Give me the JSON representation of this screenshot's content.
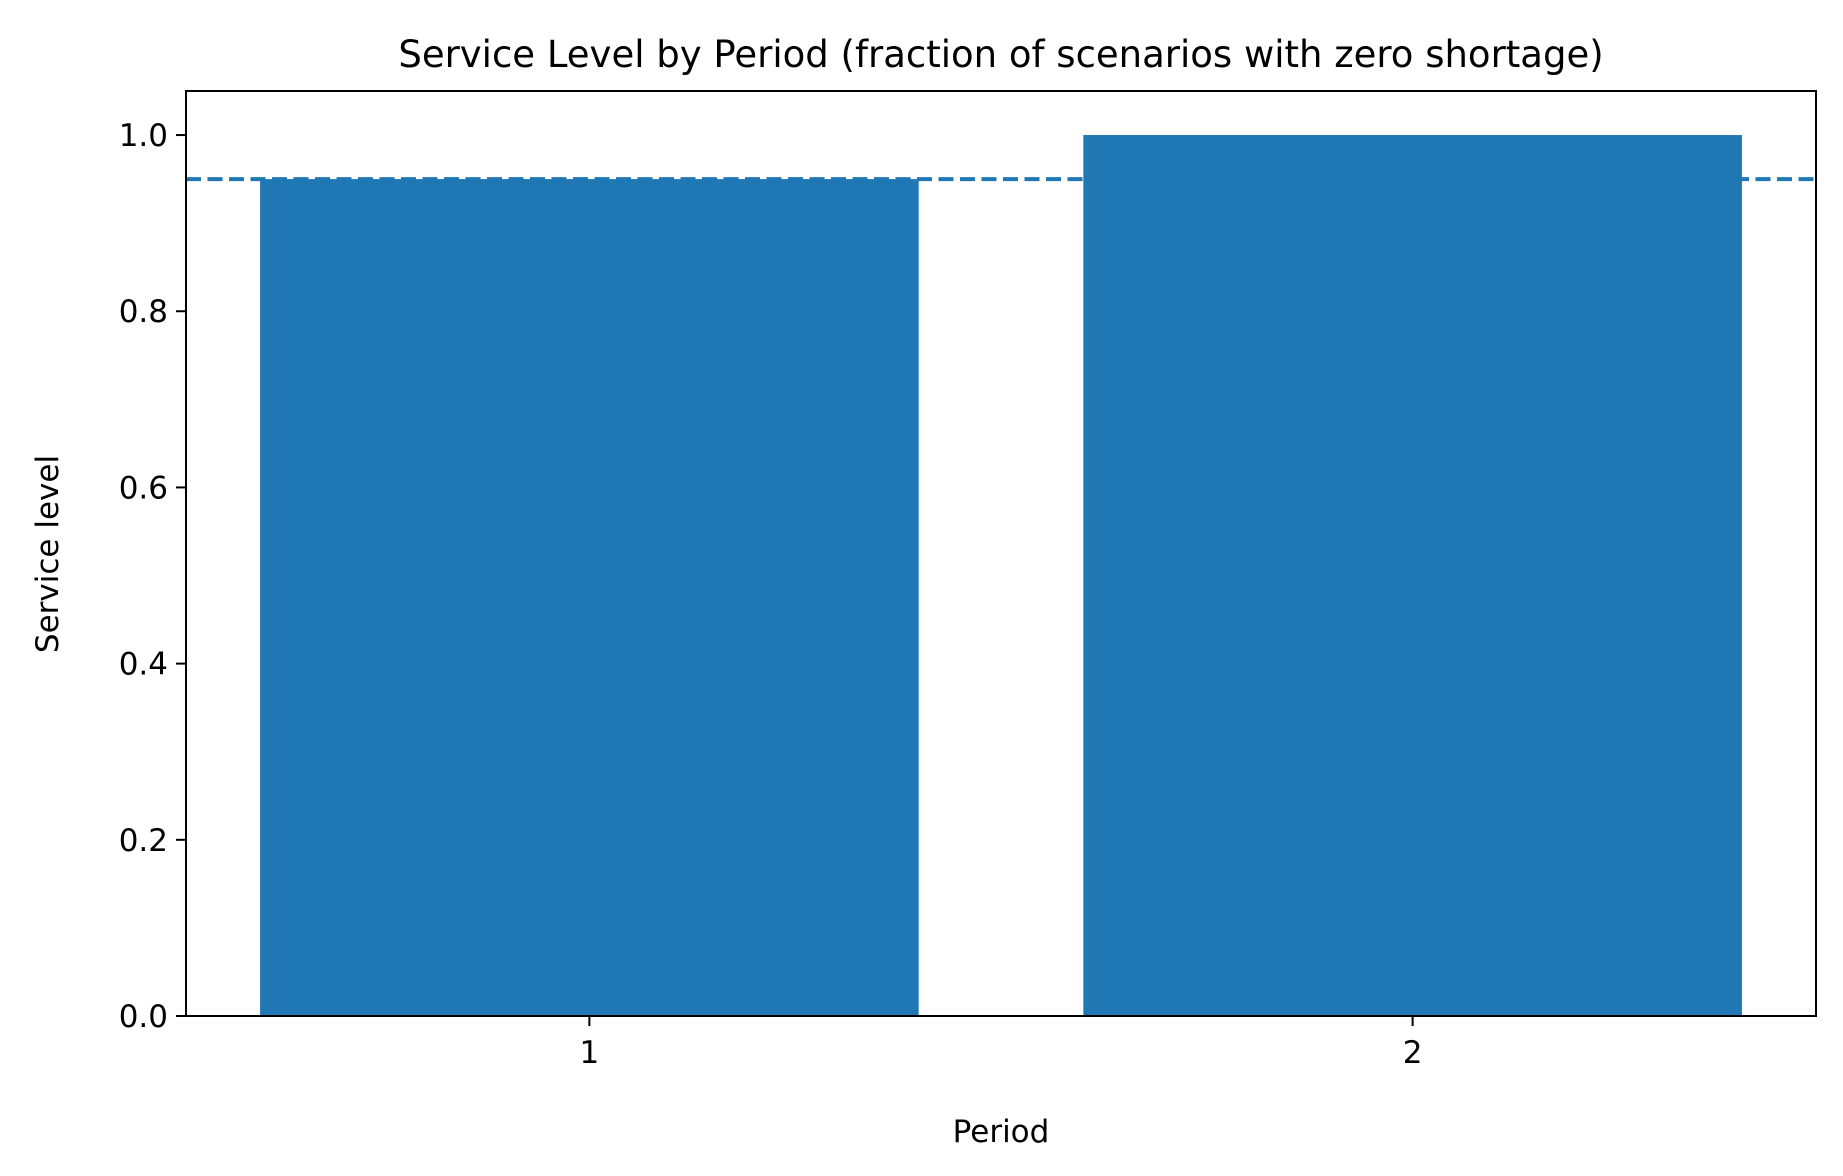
{
  "chart_data": {
    "type": "bar",
    "title": "Service Level by Period (fraction of scenarios with zero shortage)",
    "xlabel": "Period",
    "ylabel": "Service level",
    "categories": [
      "1",
      "2"
    ],
    "values": [
      0.95,
      1.0
    ],
    "ylim": [
      0,
      1.05
    ],
    "yticks": [
      "0.0",
      "0.2",
      "0.4",
      "0.6",
      "0.8",
      "1.0"
    ],
    "reference_line": {
      "value": 0.95,
      "style": "dashed"
    },
    "bar_color": "#1f77b4",
    "grid": false,
    "legend": "none"
  }
}
